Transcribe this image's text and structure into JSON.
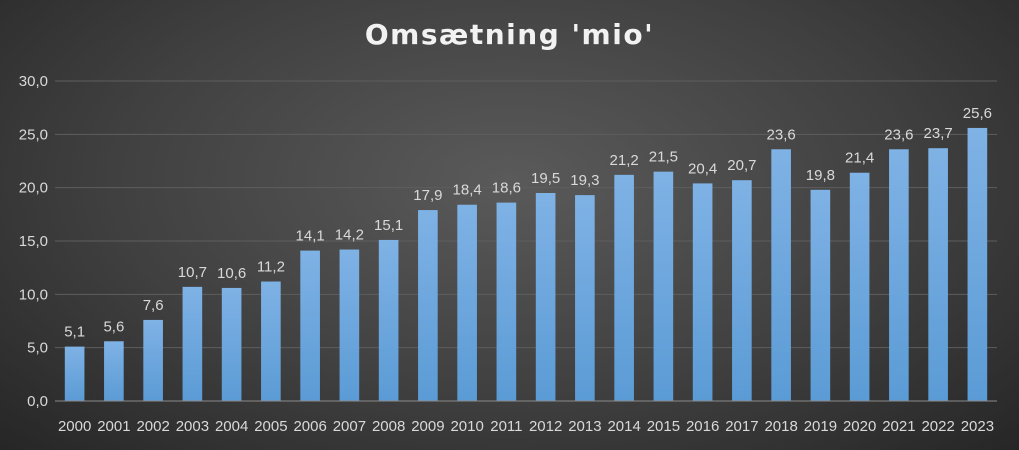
{
  "chart_data": {
    "type": "bar",
    "title": "Omsætning 'mio'",
    "categories": [
      "2000",
      "2001",
      "2002",
      "2003",
      "2004",
      "2005",
      "2006",
      "2007",
      "2008",
      "2009",
      "2010",
      "2011",
      "2012",
      "2013",
      "2014",
      "2015",
      "2016",
      "2017",
      "2018",
      "2019",
      "2020",
      "2021",
      "2022",
      "2023"
    ],
    "values": [
      5.1,
      5.6,
      7.6,
      10.7,
      10.6,
      11.2,
      14.1,
      14.2,
      15.1,
      17.9,
      18.4,
      18.6,
      19.5,
      19.3,
      21.2,
      21.5,
      20.4,
      20.7,
      23.6,
      19.8,
      21.4,
      23.6,
      23.7,
      25.6
    ],
    "data_labels": [
      "5,1",
      "5,6",
      "7,6",
      "10,7",
      "10,6",
      "11,2",
      "14,1",
      "14,2",
      "15,1",
      "17,9",
      "18,4",
      "18,6",
      "19,5",
      "19,3",
      "21,2",
      "21,5",
      "20,4",
      "20,7",
      "23,6",
      "19,8",
      "21,4",
      "23,6",
      "23,7",
      "25,6"
    ],
    "y_ticks": [
      "0,0",
      "5,0",
      "10,0",
      "15,0",
      "20,0",
      "25,0",
      "30,0"
    ],
    "ylim": [
      0,
      30
    ],
    "grid": true,
    "bar_color": "#5b9bd5",
    "bar_color_light": "#7fb2e5",
    "background": "#404040",
    "text_color": "#d9d9d9"
  }
}
